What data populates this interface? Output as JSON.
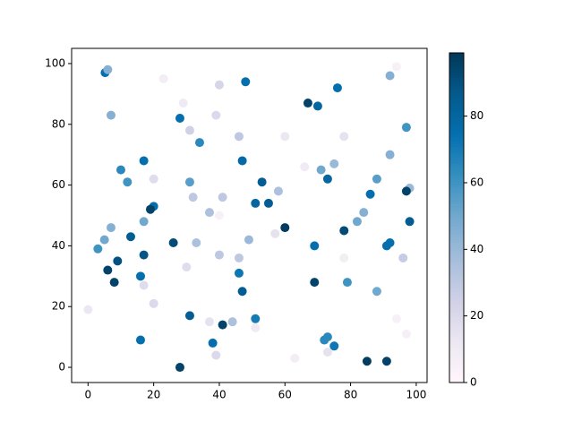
{
  "chart_data": {
    "type": "scatter",
    "x": [
      5.2,
      6,
      23,
      94,
      29,
      48,
      40,
      67,
      70,
      76,
      92,
      7,
      28,
      39,
      31,
      34,
      46,
      60,
      78,
      97,
      10,
      17,
      12,
      20,
      31,
      47,
      53,
      32,
      41,
      58,
      66,
      71,
      75,
      73,
      92,
      88,
      86,
      98,
      97,
      20,
      19,
      17,
      7,
      5,
      3,
      13,
      26,
      33,
      37,
      40,
      51,
      55,
      60,
      57,
      49,
      78,
      82,
      84,
      98,
      92,
      91,
      69,
      6,
      9,
      17,
      40,
      46,
      78,
      96,
      8,
      16,
      17,
      30,
      46,
      47,
      69,
      79,
      88,
      0,
      20,
      31,
      37,
      44,
      51,
      51,
      16,
      38,
      41,
      39,
      28,
      63,
      72,
      73,
      75,
      73,
      85,
      91,
      94,
      97
    ],
    "values": [
      97,
      98,
      95,
      99,
      87,
      94,
      93,
      87,
      86,
      92,
      96,
      83,
      82,
      83,
      78,
      74,
      76,
      76,
      76,
      79,
      65,
      68,
      61,
      62,
      61,
      68,
      61,
      56,
      56,
      58,
      66,
      65,
      67,
      62,
      70,
      62,
      57,
      59,
      58,
      53,
      52,
      48,
      46,
      42,
      39,
      43,
      41,
      41,
      51,
      50,
      54,
      54,
      46,
      44,
      42,
      45,
      48,
      51,
      48,
      41,
      40,
      40,
      32,
      35,
      37,
      37,
      36,
      36,
      36,
      28,
      30,
      27,
      33,
      31,
      25,
      28,
      28,
      25,
      19,
      21,
      17,
      15,
      15,
      13,
      16,
      9,
      8,
      14,
      4,
      0,
      3,
      9,
      10,
      7,
      5,
      2,
      2,
      16,
      11
    ],
    "color_values": [
      75,
      45,
      8,
      5,
      10,
      75,
      22,
      95,
      80,
      75,
      45,
      45,
      75,
      20,
      25,
      65,
      30,
      12,
      15,
      60,
      65,
      75,
      60,
      18,
      55,
      78,
      85,
      30,
      30,
      35,
      10,
      50,
      40,
      80,
      45,
      55,
      75,
      40,
      95,
      75,
      95,
      50,
      45,
      50,
      60,
      85,
      92,
      35,
      35,
      5,
      80,
      85,
      97,
      15,
      40,
      92,
      50,
      45,
      85,
      75,
      75,
      75,
      95,
      90,
      88,
      30,
      30,
      8,
      28,
      95,
      75,
      18,
      18,
      72,
      85,
      95,
      60,
      50,
      12,
      20,
      85,
      15,
      35,
      10,
      70,
      75,
      75,
      95,
      20,
      95,
      8,
      65,
      65,
      72,
      15,
      97,
      95,
      5,
      6
    ],
    "colormap": [
      "#fff7fb",
      "#ece7f2",
      "#d0d1e6",
      "#a6bddb",
      "#74a9cf",
      "#3690c0",
      "#0570b0",
      "#045a8d",
      "#023858"
    ],
    "clim": [
      0,
      99
    ],
    "cticks": [
      0,
      20,
      40,
      60,
      80
    ],
    "xlim": [
      -5,
      103.3
    ],
    "xticks": [
      0,
      20,
      40,
      60,
      80,
      100
    ],
    "ylim": [
      -5,
      105
    ],
    "yticks": [
      0,
      20,
      40,
      60,
      80,
      100
    ]
  }
}
